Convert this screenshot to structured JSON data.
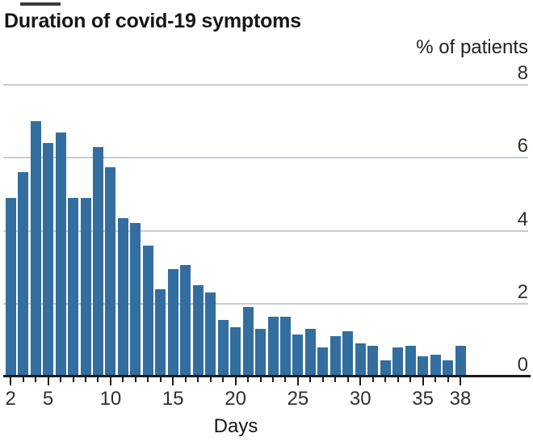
{
  "chart_data": {
    "type": "bar",
    "title": "Duration of covid-19 symptoms",
    "ylabel": "% of patients",
    "xlabel": "Days",
    "categories": [
      2,
      3,
      4,
      5,
      6,
      7,
      8,
      9,
      10,
      11,
      12,
      13,
      14,
      15,
      16,
      17,
      18,
      19,
      20,
      21,
      22,
      23,
      24,
      25,
      26,
      27,
      28,
      29,
      30,
      31,
      32,
      33,
      34,
      35,
      36,
      37,
      38
    ],
    "values": [
      4.9,
      5.6,
      7.0,
      6.4,
      6.7,
      4.9,
      4.9,
      6.3,
      5.75,
      4.35,
      4.2,
      3.6,
      2.4,
      2.95,
      3.05,
      2.5,
      2.3,
      1.55,
      1.35,
      1.9,
      1.3,
      1.65,
      1.65,
      1.15,
      1.3,
      0.8,
      1.1,
      1.25,
      0.9,
      0.85,
      0.45,
      0.8,
      0.85,
      0.55,
      0.6,
      0.45,
      0.85
    ],
    "yticks": [
      8,
      6,
      4,
      2,
      0
    ],
    "xticks": [
      2,
      5,
      10,
      15,
      20,
      25,
      30,
      35,
      38
    ],
    "ylim": [
      0,
      8
    ],
    "grid": true,
    "legend_position": "none",
    "colors": {
      "bar": "#336e9e",
      "gridline": "#c3cdd4",
      "axis": "#1c1c1c",
      "brand_tick": "#3a3a3a",
      "label": "#2e2e2e"
    }
  }
}
